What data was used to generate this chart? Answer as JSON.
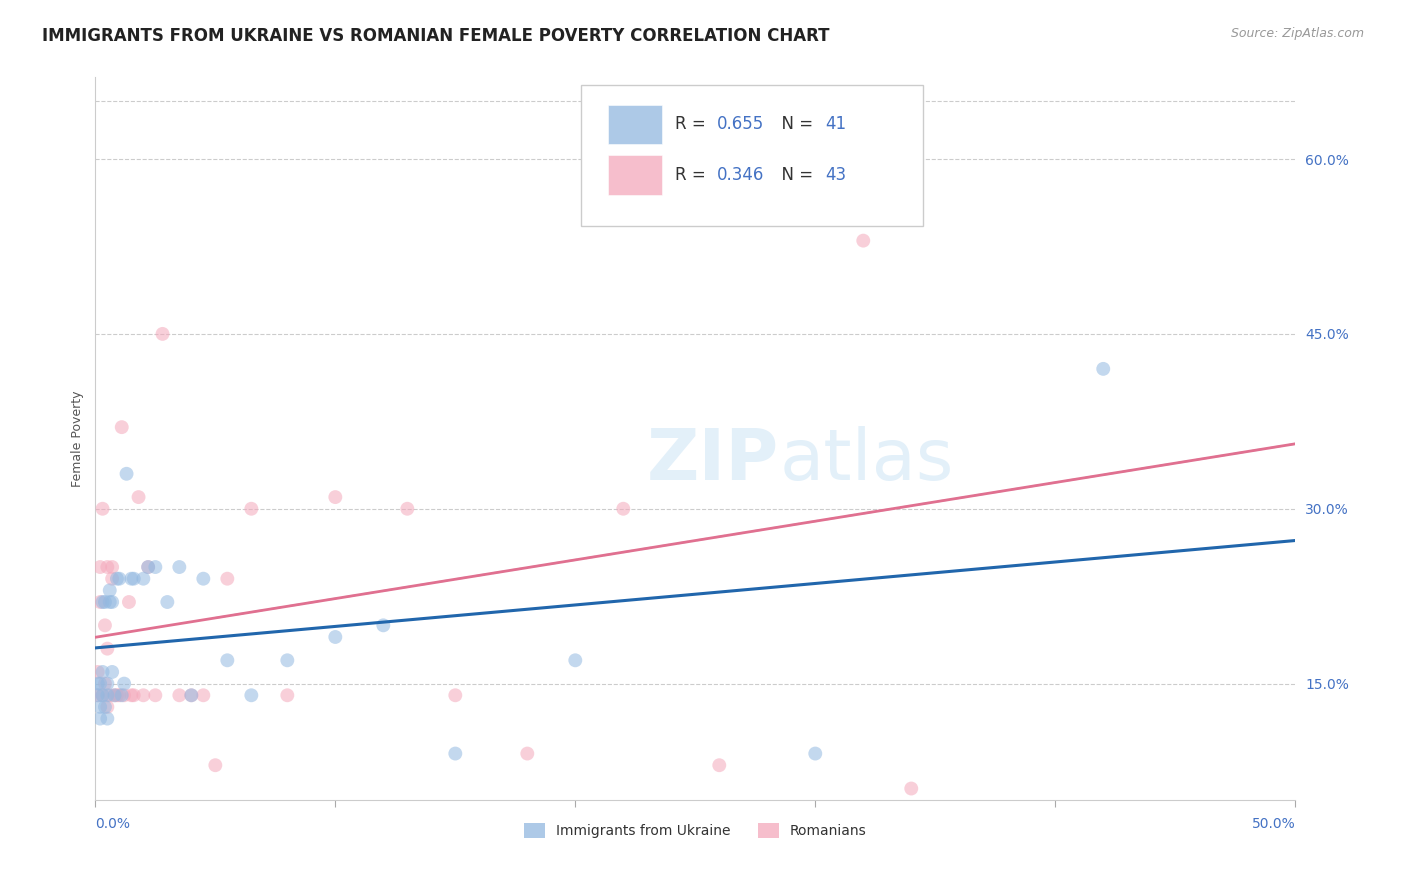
{
  "title": "IMMIGRANTS FROM UKRAINE VS ROMANIAN FEMALE POVERTY CORRELATION CHART",
  "source": "Source: ZipAtlas.com",
  "ylabel": "Female Poverty",
  "ylabel_right_labels": [
    "60.0%",
    "45.0%",
    "30.0%",
    "15.0%"
  ],
  "ylabel_right_values": [
    0.6,
    0.45,
    0.3,
    0.15
  ],
  "xmin": 0.0,
  "xmax": 0.5,
  "ymin": 0.05,
  "ymax": 0.67,
  "legend_R1": "0.655",
  "legend_N1": "41",
  "legend_R2": "0.346",
  "legend_N2": "43",
  "ukraine_color": "#92b8e0",
  "romanian_color": "#f4a8bb",
  "trendline_ukraine_color": "#2166ac",
  "trendline_romanian_color": "#e07090",
  "watermark": "ZIPatlas",
  "ukraine_x": [
    0.001,
    0.001,
    0.002,
    0.002,
    0.002,
    0.003,
    0.003,
    0.003,
    0.004,
    0.004,
    0.005,
    0.005,
    0.005,
    0.006,
    0.006,
    0.007,
    0.007,
    0.008,
    0.009,
    0.01,
    0.011,
    0.012,
    0.013,
    0.015,
    0.016,
    0.02,
    0.022,
    0.025,
    0.03,
    0.035,
    0.04,
    0.045,
    0.055,
    0.065,
    0.08,
    0.1,
    0.12,
    0.15,
    0.2,
    0.3,
    0.42
  ],
  "ukraine_y": [
    0.15,
    0.14,
    0.13,
    0.15,
    0.12,
    0.14,
    0.16,
    0.22,
    0.13,
    0.22,
    0.12,
    0.15,
    0.14,
    0.23,
    0.22,
    0.16,
    0.22,
    0.14,
    0.24,
    0.24,
    0.14,
    0.15,
    0.33,
    0.24,
    0.24,
    0.24,
    0.25,
    0.25,
    0.22,
    0.25,
    0.14,
    0.24,
    0.17,
    0.14,
    0.17,
    0.19,
    0.2,
    0.09,
    0.17,
    0.09,
    0.42
  ],
  "romanian_x": [
    0.001,
    0.001,
    0.002,
    0.002,
    0.003,
    0.003,
    0.004,
    0.004,
    0.005,
    0.005,
    0.005,
    0.006,
    0.007,
    0.007,
    0.008,
    0.009,
    0.01,
    0.011,
    0.012,
    0.014,
    0.015,
    0.016,
    0.018,
    0.02,
    0.022,
    0.025,
    0.028,
    0.035,
    0.04,
    0.045,
    0.05,
    0.055,
    0.065,
    0.08,
    0.1,
    0.13,
    0.15,
    0.18,
    0.22,
    0.26,
    0.29,
    0.32,
    0.34
  ],
  "romanian_y": [
    0.16,
    0.14,
    0.25,
    0.22,
    0.14,
    0.3,
    0.2,
    0.15,
    0.25,
    0.18,
    0.13,
    0.14,
    0.24,
    0.25,
    0.14,
    0.14,
    0.14,
    0.37,
    0.14,
    0.22,
    0.14,
    0.14,
    0.31,
    0.14,
    0.25,
    0.14,
    0.45,
    0.14,
    0.14,
    0.14,
    0.08,
    0.24,
    0.3,
    0.14,
    0.31,
    0.3,
    0.14,
    0.09,
    0.3,
    0.08,
    0.57,
    0.53,
    0.06
  ],
  "marker_size": 100,
  "marker_alpha": 0.55,
  "grid_color": "#cccccc",
  "background_color": "#ffffff",
  "title_fontsize": 12,
  "axis_label_fontsize": 9,
  "tick_fontsize": 10,
  "source_fontsize": 9,
  "axis_label_color": "#4472c4",
  "text_color": "#333333"
}
